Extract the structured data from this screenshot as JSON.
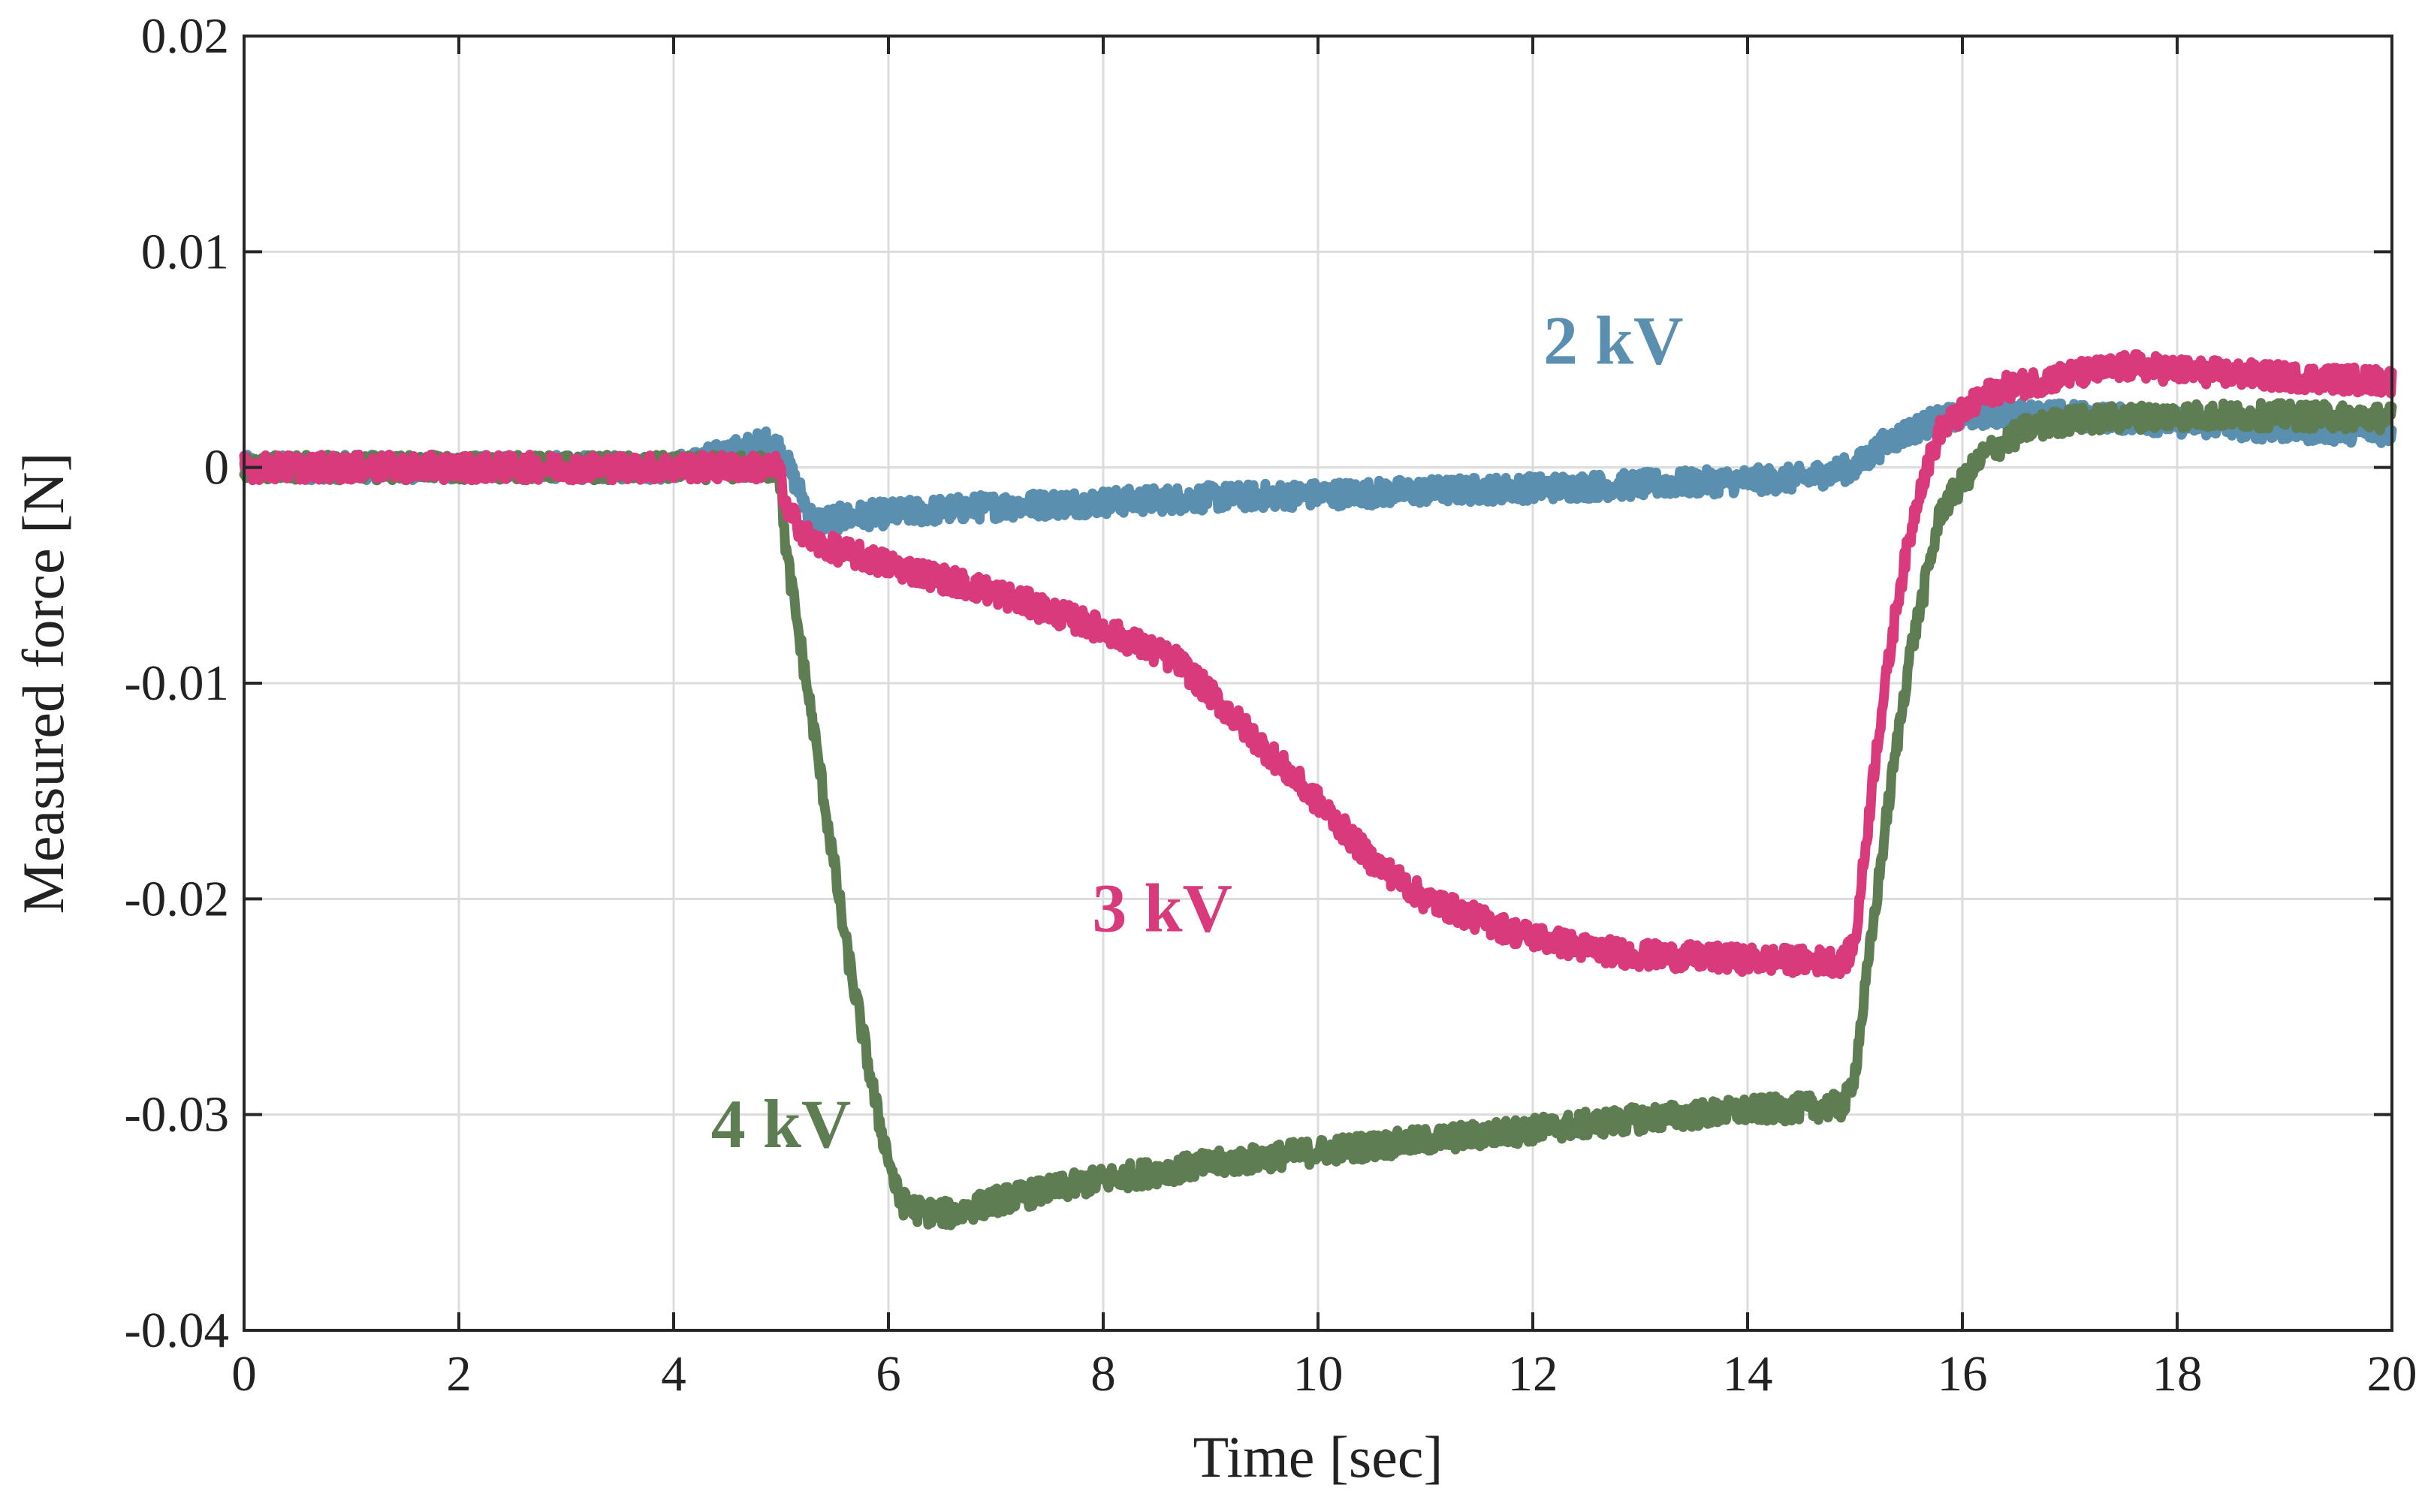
{
  "chart_data": {
    "type": "line",
    "title": "",
    "xlabel": "Time [sec]",
    "ylabel": "Measured force [N]",
    "xlim": [
      0,
      20
    ],
    "ylim": [
      -0.04,
      0.02
    ],
    "grid": true,
    "x_ticks": [
      0,
      2,
      4,
      6,
      8,
      10,
      12,
      14,
      16,
      18,
      20
    ],
    "x_tick_labels": [
      "0",
      "2",
      "4",
      "6",
      "8",
      "10",
      "12",
      "14",
      "16",
      "18",
      "20"
    ],
    "y_ticks": [
      0.02,
      0.01,
      0,
      -0.01,
      -0.02,
      -0.03,
      -0.04
    ],
    "y_tick_labels": [
      "0.02",
      "0.01",
      "0",
      "-0.01",
      "-0.02",
      "-0.03",
      "-0.04"
    ],
    "series": [
      {
        "name": "2 kV",
        "color": "#5b8fb0",
        "noise": 0.0006,
        "x": [
          0,
          4,
          4.9,
          5.0,
          5.3,
          5.8,
          7,
          9,
          11,
          13,
          14.5,
          15.0,
          15.3,
          15.7,
          16.2,
          17,
          18,
          19,
          20
        ],
        "y": [
          0.0,
          0.0,
          0.0012,
          0.0008,
          -0.0025,
          -0.0022,
          -0.0018,
          -0.0014,
          -0.0011,
          -0.0008,
          -0.0005,
          0.0,
          0.0012,
          0.0021,
          0.0025,
          0.0024,
          0.0021,
          0.0018,
          0.0017
        ]
      },
      {
        "name": "3 kV",
        "color": "#d93a7b",
        "noise": 0.0006,
        "x": [
          0,
          4,
          4.98,
          5.05,
          5.3,
          6,
          7,
          8,
          8.7,
          9.2,
          10,
          10.5,
          11,
          11.8,
          12.5,
          13,
          14,
          14.9,
          15.0,
          15.2,
          15.4,
          15.6,
          15.8,
          16.3,
          17,
          17.6,
          18,
          19,
          20
        ],
        "y": [
          0.0,
          0.0,
          0.0,
          -0.002,
          -0.0035,
          -0.0045,
          -0.0058,
          -0.0075,
          -0.009,
          -0.0115,
          -0.0155,
          -0.0182,
          -0.02,
          -0.0215,
          -0.0223,
          -0.0226,
          -0.0228,
          -0.0229,
          -0.022,
          -0.013,
          -0.006,
          -0.001,
          0.0018,
          0.0036,
          0.0043,
          0.0047,
          0.0045,
          0.0042,
          0.004
        ]
      },
      {
        "name": "4 kV",
        "color": "#5f7d52",
        "noise": 0.0006,
        "x": [
          0,
          4,
          4.98,
          5.05,
          5.3,
          5.6,
          5.9,
          6.1,
          6.3,
          6.6,
          7,
          8,
          9,
          10,
          11,
          12,
          13,
          14,
          14.9,
          15.0,
          15.3,
          15.5,
          15.8,
          16.2,
          16.6,
          17,
          18,
          19,
          20
        ],
        "y": [
          0.0,
          0.0,
          0.0,
          -0.004,
          -0.012,
          -0.022,
          -0.03,
          -0.034,
          -0.0345,
          -0.0346,
          -0.034,
          -0.033,
          -0.0323,
          -0.0317,
          -0.0312,
          -0.0307,
          -0.0302,
          -0.0298,
          -0.0296,
          -0.028,
          -0.016,
          -0.009,
          -0.002,
          0.0006,
          0.0018,
          0.0022,
          0.0024,
          0.0024,
          0.0023
        ]
      }
    ],
    "annotations": [
      {
        "text": "2 kV",
        "x": 12.75,
        "y": 0.0048,
        "series": "2 kV"
      },
      {
        "text": "3 kV",
        "x": 8.55,
        "y": -0.0215,
        "series": "3 kV"
      },
      {
        "text": "4 kV",
        "x": 5.0,
        "y": -0.0315,
        "series": "4 kV"
      }
    ]
  }
}
